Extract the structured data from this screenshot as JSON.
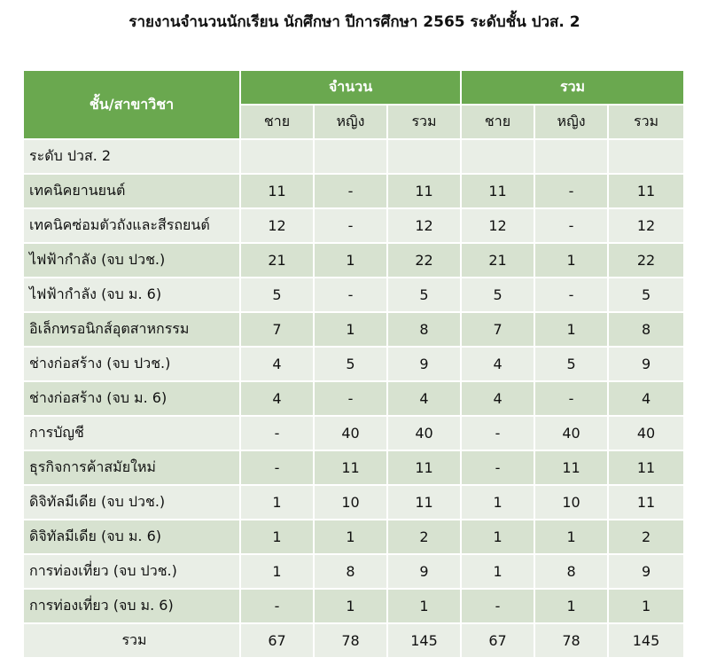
{
  "title": "รายงานจำนวนนักเรียน นักศึกษา ปีการศึกษา 2565 ระดับชั้น ปวส. 2",
  "header": {
    "corner": "ชั้น/สาขาวิชา",
    "group1": "จำนวน",
    "group2": "รวม",
    "sub": [
      "ชาย",
      "หญิง",
      "รวม",
      "ชาย",
      "หญิง",
      "รวม"
    ]
  },
  "section_label": "ระดับ ปวส. 2",
  "rows": [
    {
      "name": "เทคนิคยานยนต์",
      "values": [
        "11",
        "-",
        "11",
        "11",
        "-",
        "11"
      ]
    },
    {
      "name": "เทคนิคซ่อมตัวถังและสีรถยนต์",
      "values": [
        "12",
        "-",
        "12",
        "12",
        "-",
        "12"
      ]
    },
    {
      "name": "ไฟฟ้ากำลัง (จบ ปวช.)",
      "values": [
        "21",
        "1",
        "22",
        "21",
        "1",
        "22"
      ]
    },
    {
      "name": "ไฟฟ้ากำลัง (จบ ม. 6)",
      "values": [
        "5",
        "-",
        "5",
        "5",
        "-",
        "5"
      ]
    },
    {
      "name": "อิเล็กทรอนิกส์อุตสาหกรรม",
      "values": [
        "7",
        "1",
        "8",
        "7",
        "1",
        "8"
      ]
    },
    {
      "name": "ช่างก่อสร้าง (จบ ปวช.)",
      "values": [
        "4",
        "5",
        "9",
        "4",
        "5",
        "9"
      ]
    },
    {
      "name": "ช่างก่อสร้าง (จบ ม. 6)",
      "values": [
        "4",
        "-",
        "4",
        "4",
        "-",
        "4"
      ]
    },
    {
      "name": "การบัญชี",
      "values": [
        "-",
        "40",
        "40",
        "-",
        "40",
        "40"
      ]
    },
    {
      "name": "ธุรกิจการค้าสมัยใหม่",
      "values": [
        "-",
        "11",
        "11",
        "-",
        "11",
        "11"
      ]
    },
    {
      "name": "ดิจิทัลมีเดีย (จบ ปวช.)",
      "values": [
        "1",
        "10",
        "11",
        "1",
        "10",
        "11"
      ]
    },
    {
      "name": "ดิจิทัลมีเดีย (จบ ม. 6)",
      "values": [
        "1",
        "1",
        "2",
        "1",
        "1",
        "2"
      ]
    },
    {
      "name": "การท่องเที่ยว (จบ ปวช.)",
      "values": [
        "1",
        "8",
        "9",
        "1",
        "8",
        "9"
      ]
    },
    {
      "name": "การท่องเที่ยว (จบ ม. 6)",
      "values": [
        "-",
        "1",
        "1",
        "-",
        "1",
        "1"
      ]
    }
  ],
  "total": {
    "label": "รวม",
    "values": [
      "67",
      "78",
      "145",
      "67",
      "78",
      "145"
    ]
  },
  "colors": {
    "header_green": "#6aa84f",
    "row_light": "#e9eee6",
    "row_dark": "#d7e2d0"
  }
}
